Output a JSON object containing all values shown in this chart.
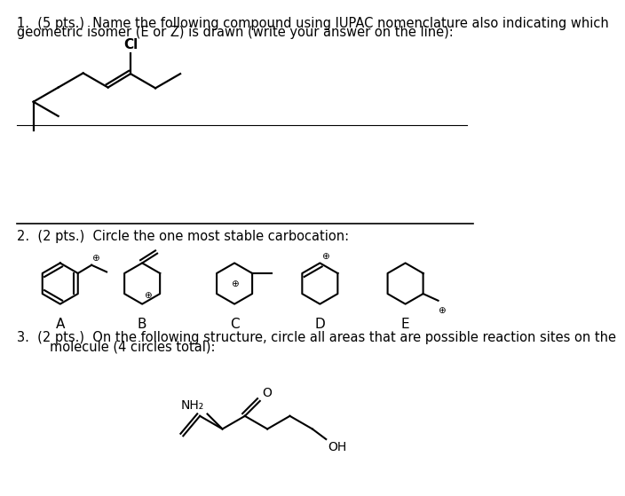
{
  "background_color": "#ffffff",
  "q1_text_1": "1.  (5 pts.)  Name the following compound using IUPAC nomenclature also indicating which",
  "q1_text_2": "geometric isomer (E or Z) is drawn (write your answer on the line):",
  "q2_text": "2.  (2 pts.)  Circle the one most stable carbocation:",
  "q3_text_1": "3.  (2 pts.)  On the following structure, circle all areas that are possible reaction sites on the",
  "q3_text_2": "        molecule (4 circles total):",
  "font_size_main": 10.5,
  "text_color": "#000000"
}
